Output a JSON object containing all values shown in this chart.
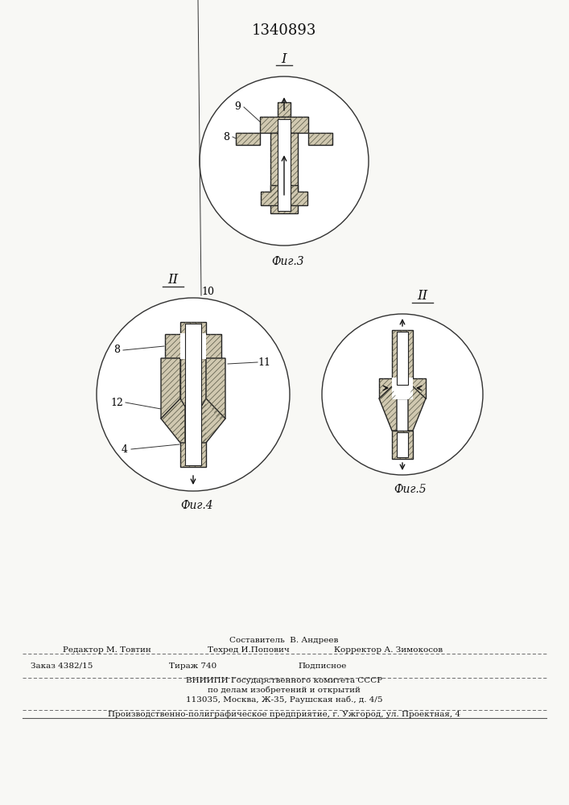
{
  "patent_number": "1340893",
  "bg_color": "#f8f8f5",
  "fig_label_I": "I",
  "fig_label_II_left": "II",
  "fig_label_II_right": "II",
  "fig3_caption": "Фиг.3",
  "fig4_caption": "Фиг.4",
  "fig5_caption": "Фиг.5",
  "footer_line1": "Составитель  В. Андреев",
  "footer_line2_left": "Редактор М. Товтин",
  "footer_line2_mid": "Техред И.Попович",
  "footer_line2_right": "Корректор А. Зимокосов",
  "footer_line3_left": "Заказ 4382/15",
  "footer_line3_mid": "Тираж 740",
  "footer_line3_right": "Подписное",
  "footer_line4": "ВНИИПИ Государственного комитета СССР",
  "footer_line5": "по делам изобретений и открытий",
  "footer_line6": "113035, Москва, Ж-35, Раушская наб., д. 4/5",
  "footer_bottom": "Производственно-полиграфическое предприятие, г. Ужгород, ул. Проектная, 4"
}
